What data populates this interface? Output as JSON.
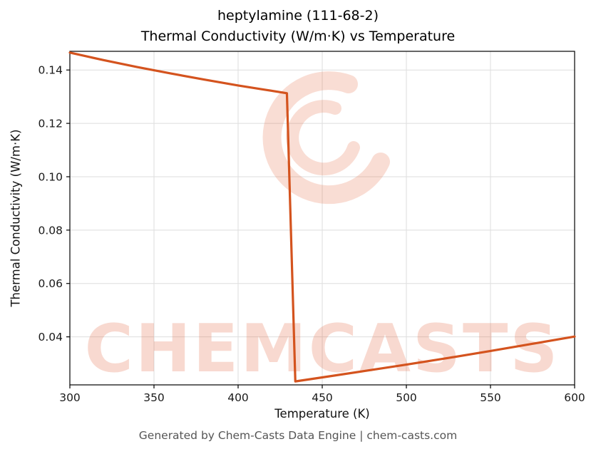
{
  "page": {
    "title_line1": "heptylamine (111-68-2)",
    "title_line2": "Thermal Conductivity (W/m·K) vs Temperature",
    "footer": "Generated by Chem-Casts Data Engine | chem-casts.com"
  },
  "chart_data": {
    "type": "line",
    "title": "heptylamine (111-68-2) Thermal Conductivity (W/m·K) vs Temperature",
    "xlabel": "Temperature (K)",
    "ylabel": "Thermal Conductivity (W/m·K)",
    "xlim": [
      300,
      600
    ],
    "ylim": [
      0.022,
      0.147
    ],
    "xticks": [
      300,
      350,
      400,
      450,
      500,
      550,
      600
    ],
    "yticks": [
      0.04,
      0.06,
      0.08,
      0.1,
      0.12,
      0.14
    ],
    "ytick_labels": [
      "0.04",
      "0.06",
      "0.08",
      "0.10",
      "0.12",
      "0.14"
    ],
    "grid": true,
    "legend": "none",
    "line_color": "#d4531e",
    "grid_color": "#dedede",
    "watermark_text": "CHEMCASTS",
    "watermark_color": "#e05327",
    "series": [
      {
        "name": "thermal conductivity",
        "x": [
          300,
          320,
          340,
          360,
          380,
          400,
          415,
          429,
          434,
          450,
          475,
          500,
          525,
          550,
          575,
          600
        ],
        "y": [
          0.1465,
          0.1437,
          0.1411,
          0.1387,
          0.1364,
          0.1342,
          0.1327,
          0.1313,
          0.0233,
          0.0248,
          0.0272,
          0.0296,
          0.0321,
          0.0347,
          0.0374,
          0.0401
        ]
      }
    ]
  }
}
